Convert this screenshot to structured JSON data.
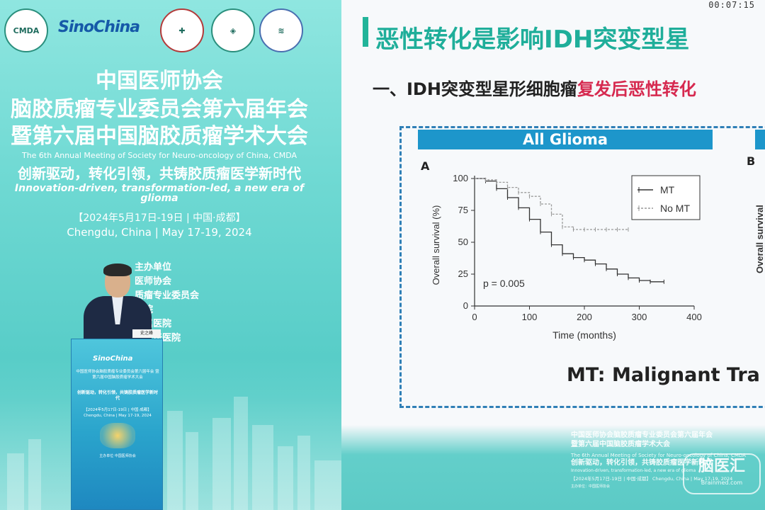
{
  "screen": {
    "timer": "00:07:15",
    "title": "恶性转化是影响IDH突变型星",
    "subtitle_prefix": "一、IDH突变型星形细胞瘤",
    "subtitle_highlight": "复发后恶性转化",
    "panel_a_header": "All Glioma",
    "panel_a_letter": "A",
    "panel_b_letter": "B",
    "panel_b_ylabel": "Overall survival",
    "caption": "MT: Malignant Tra"
  },
  "chart_data": {
    "type": "line",
    "title": "All Glioma",
    "xlabel": "Time (months)",
    "ylabel": "Overall survival (%)",
    "xlim": [
      0,
      400
    ],
    "ylim": [
      0,
      100
    ],
    "x_ticks": [
      "0",
      "100",
      "200",
      "300",
      "400"
    ],
    "y_ticks": [
      "0",
      "25",
      "50",
      "75",
      "100"
    ],
    "annotation": "p = 0.005",
    "legend_position": "top-right",
    "series": [
      {
        "name": "MT",
        "style": "solid",
        "color": "#333333",
        "x": [
          0,
          20,
          40,
          60,
          80,
          100,
          120,
          140,
          160,
          180,
          200,
          220,
          240,
          260,
          280,
          300,
          320,
          345
        ],
        "y": [
          100,
          98,
          92,
          85,
          77,
          68,
          58,
          48,
          41,
          38,
          36,
          33,
          29,
          25,
          22,
          20,
          19,
          19
        ]
      },
      {
        "name": "No MT",
        "style": "dashed",
        "color": "#9a9a9a",
        "x": [
          0,
          20,
          40,
          60,
          80,
          100,
          120,
          140,
          160,
          180,
          200,
          220,
          240,
          260,
          280
        ],
        "y": [
          100,
          99,
          97,
          93,
          89,
          86,
          80,
          72,
          62,
          60,
          60,
          60,
          60,
          60,
          60
        ]
      }
    ]
  },
  "conference": {
    "line1": "中国医师协会",
    "line2": "脑胶质瘤专业委员会第六届年会",
    "line3": "暨第六届中国脑胶质瘤学术大会",
    "line4": "The 6th Annual Meeting of Society for Neuro-oncology of China, CMDA",
    "line5": "创新驱动，转化引领，共铸胶质瘤医学新时代",
    "line6": "Innovation-driven, transformation-led, a new era of glioma",
    "line7": "【2024年5月17日-19日 | 中国·成都】",
    "line8": "Chengdu, China | May 17-19, 2024"
  },
  "organizers": [
    "主办单位",
    "医师协会",
    "质瘤专业委员会",
    "医院",
    "附属医院",
    "京天坛医院"
  ],
  "logos": {
    "cmda": "CMDA",
    "sino": "SinoChina"
  },
  "podium": {
    "nameplate": "史之峰",
    "logo": "SinoChina",
    "title": "中国医师协会脑胶质瘤专业委员会第六届年会 暨第六届中国脑胶质瘤学术大会",
    "subtitle": "创新驱动，转化引领，共铸胶质瘤医学新时代",
    "date": "【2024年5月17日-19日 | 中国·成都】 Chengdu, China | May 17-19, 2024",
    "org": "主办单位 中国医师协会"
  },
  "bottom_right": {
    "r1": "中国医师协会脑胶质瘤专业委员会第六届年会",
    "r1b": "暨第六届中国脑胶质瘤学术大会",
    "r2": "The 6th Annual Meeting of Society for Neuro-oncology of China, CMDA",
    "r3": "创新驱动，转化引领，共铸胶质瘤医学新时代",
    "r4": "Innovation-driven, transformation-led, a new era of glioma",
    "r5": "【2024年5月17日-19日 | 中国·成都】 Chengdu, China | May 17-19, 2024",
    "r6": "主办单位：中国医师协会"
  },
  "watermark": {
    "main": "脑医汇",
    "sub": "Brainmed.com"
  },
  "colors": {
    "slide_accent": "#1fae9a",
    "highlight": "#d6294f",
    "panel_header": "#1d96cb",
    "dashed_border": "#2f7fb6"
  }
}
